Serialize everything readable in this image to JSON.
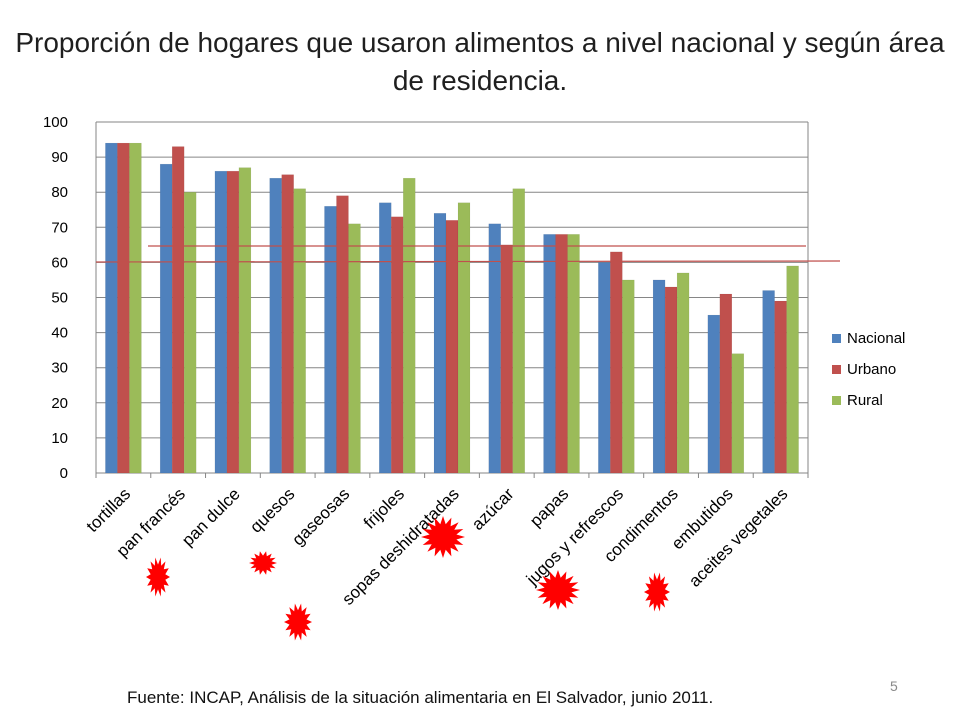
{
  "slide": {
    "title": "Proporción de hogares que usaron alimentos a nivel nacional y según área de residencia.",
    "footer": "Fuente: INCAP, Análisis de la situación alimentaria en El Salvador, junio 2011.",
    "page_number": "5"
  },
  "chart_data": {
    "type": "bar",
    "title": "",
    "xlabel": "",
    "ylabel": "",
    "ylim": [
      0,
      100
    ],
    "yticks": [
      "0",
      "10",
      "20",
      "30",
      "40",
      "50",
      "60",
      "70",
      "80",
      "90",
      "100"
    ],
    "grid": true,
    "legend_position": "right",
    "categories": [
      "tortillas",
      "pan francés",
      "pan dulce",
      "quesos",
      "gaseosas",
      "frijoles",
      "sopas deshidratadas",
      "azúcar",
      "papas",
      "jugos y refrescos",
      "condimentos",
      "embutidos",
      "aceites vegetales"
    ],
    "series": [
      {
        "name": "Nacional",
        "color": "#4f81bd",
        "values": [
          94,
          88,
          86,
          84,
          76,
          77,
          74,
          71,
          68,
          60,
          55,
          45,
          52
        ]
      },
      {
        "name": "Urbano",
        "color": "#c0504d",
        "values": [
          94,
          93,
          86,
          85,
          79,
          73,
          72,
          65,
          68,
          63,
          53,
          51,
          49
        ]
      },
      {
        "name": "Rural",
        "color": "#9bbb59",
        "values": [
          94,
          80,
          87,
          81,
          71,
          84,
          77,
          81,
          68,
          55,
          57,
          34,
          59
        ]
      }
    ],
    "reference_lines": [
      {
        "color": "#c0504d"
      },
      {
        "color": "#c0504d"
      }
    ],
    "highlight_markers": {
      "color": "#ff0000",
      "icon": "starburst"
    }
  }
}
